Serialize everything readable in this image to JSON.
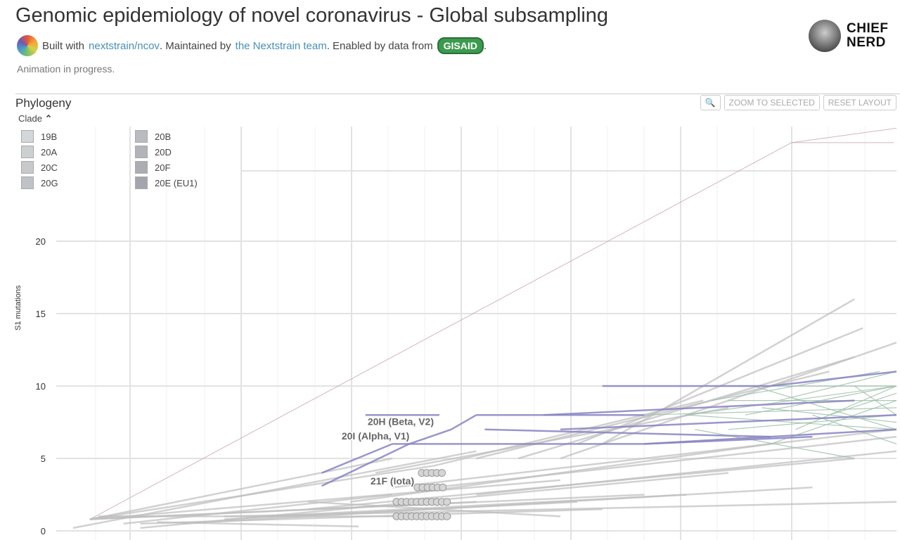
{
  "header": {
    "title": "Genomic epidemiology of novel coronavirus - Global subsampling",
    "built_with": "Built with",
    "link1": "nextstrain/ncov",
    "maintained": ". Maintained by",
    "link2": "the Nextstrain team",
    "enabled": ". Enabled by data from",
    "gisaid": "GISAID",
    "period": ".",
    "status": "Animation in progress."
  },
  "brand": {
    "line1": "CHIEF",
    "line2": "NERD"
  },
  "panel": {
    "title": "Phylogeny",
    "legend_title": "Clade",
    "zoom_selected": "ZOOM TO SELECTED",
    "reset_layout": "RESET LAYOUT"
  },
  "legend": [
    {
      "label": "19B",
      "color": "#d3d7da"
    },
    {
      "label": "20A",
      "color": "#ccd0d3"
    },
    {
      "label": "20C",
      "color": "#c6cacd"
    },
    {
      "label": "20G",
      "color": "#bfc3c7"
    },
    {
      "label": "20B",
      "color": "#b8bcc0"
    },
    {
      "label": "20D",
      "color": "#b1b4b9"
    },
    {
      "label": "20F",
      "color": "#aaadb2"
    },
    {
      "label": "20E (EU1)",
      "color": "#a3a5ad"
    }
  ],
  "chart_data": {
    "type": "line",
    "ylabel": "S1 mutations",
    "xlabel": "",
    "yticks": [
      "0",
      "5",
      "10",
      "15",
      "20"
    ],
    "ylim": [
      0,
      28
    ],
    "xlim": [
      0,
      100
    ],
    "grid": true,
    "colors": {
      "grey": "#bdbdbd",
      "purple": "#8884c2",
      "green": "#9bbfa8",
      "thin": "#c9a9b4"
    },
    "clade_labels": [
      {
        "text": "20H (Beta, V2)",
        "x": 41,
        "y": 7.3
      },
      {
        "text": "20I (Alpha, V1)",
        "x": 38,
        "y": 6.3
      },
      {
        "text": "21F (Iota)",
        "x": 40,
        "y": 3.2
      }
    ],
    "branches": {
      "thin": [
        [
          4,
          0.8,
          87.5,
          26.8
        ],
        [
          87.5,
          26.8,
          99.7,
          26.8
        ],
        [
          87.5,
          26.8,
          100,
          27.8
        ]
      ],
      "grey": [
        [
          4,
          0.8,
          40,
          5
        ],
        [
          4,
          0.8,
          45,
          4.5
        ],
        [
          4,
          0.8,
          60,
          3.5
        ],
        [
          4,
          0.8,
          70,
          2.5
        ],
        [
          4,
          0.8,
          50,
          2
        ],
        [
          10,
          0.5,
          65,
          1.5
        ],
        [
          10,
          0.2,
          80,
          4
        ],
        [
          15,
          0.5,
          90,
          3
        ],
        [
          20,
          1,
          100,
          2
        ],
        [
          20,
          0.8,
          62,
          2
        ],
        [
          5,
          1,
          47,
          1
        ],
        [
          30,
          1.5,
          95,
          5
        ],
        [
          35,
          2,
          85,
          6
        ],
        [
          40,
          3,
          100,
          7
        ],
        [
          38,
          4,
          80,
          8.5
        ],
        [
          45,
          4.5,
          77,
          9
        ],
        [
          50,
          5,
          92,
          11
        ],
        [
          55,
          5,
          95,
          12
        ],
        [
          60,
          5,
          100,
          13
        ],
        [
          62,
          6,
          96,
          14
        ],
        [
          65,
          6,
          95,
          16
        ],
        [
          2,
          0.2,
          50,
          5.5
        ],
        [
          8,
          0.5,
          40,
          2.5
        ],
        [
          25,
          1,
          75,
          2.5
        ],
        [
          30,
          2,
          60,
          1
        ],
        [
          12,
          0.6,
          36,
          0.3
        ],
        [
          50,
          2.5,
          100,
          5.5
        ],
        [
          45,
          3,
          100,
          6.5
        ]
      ],
      "purple": [
        [
          31.6,
          3.1,
          42,
          6
        ],
        [
          42,
          6,
          47,
          7
        ],
        [
          47,
          7,
          50,
          8
        ],
        [
          31.6,
          4,
          40,
          6
        ],
        [
          40,
          6,
          46,
          6
        ],
        [
          46,
          6,
          70,
          6
        ],
        [
          50,
          8,
          70,
          8
        ],
        [
          70,
          6,
          100,
          7
        ],
        [
          70,
          6,
          90,
          6.5
        ],
        [
          51,
          7,
          85,
          6.5
        ],
        [
          65,
          10,
          85,
          10
        ],
        [
          85,
          10,
          100,
          11
        ],
        [
          36.8,
          8,
          45.6,
          8
        ],
        [
          58,
          8,
          95,
          9
        ],
        [
          60,
          7,
          100,
          8
        ]
      ],
      "green": [
        [
          75,
          8,
          100,
          10
        ],
        [
          75,
          8,
          100,
          7
        ],
        [
          80,
          9,
          100,
          9
        ],
        [
          80,
          7,
          100,
          8
        ],
        [
          82,
          8,
          100,
          10
        ],
        [
          85,
          6,
          100,
          9
        ],
        [
          78,
          9,
          98,
          11
        ],
        [
          83,
          10,
          100,
          7
        ],
        [
          88,
          7,
          100,
          10
        ],
        [
          90,
          8,
          100,
          6
        ],
        [
          76,
          7,
          95,
          5
        ],
        [
          86,
          9,
          100,
          11
        ],
        [
          92,
          8,
          100,
          9.5
        ],
        [
          70,
          8,
          100,
          8.5
        ],
        [
          84,
          8.5,
          100,
          7.5
        ],
        [
          95,
          10,
          100,
          8
        ],
        [
          80,
          10,
          100,
          10
        ]
      ]
    },
    "tips": [
      {
        "y": 1,
        "x0": 40.5,
        "x1": 46.5
      },
      {
        "y": 2,
        "x0": 40.5,
        "x1": 46.5
      },
      {
        "y": 3,
        "x0": 43,
        "x1": 46.5
      },
      {
        "y": 4,
        "x0": 43.5,
        "x1": 46
      }
    ]
  }
}
